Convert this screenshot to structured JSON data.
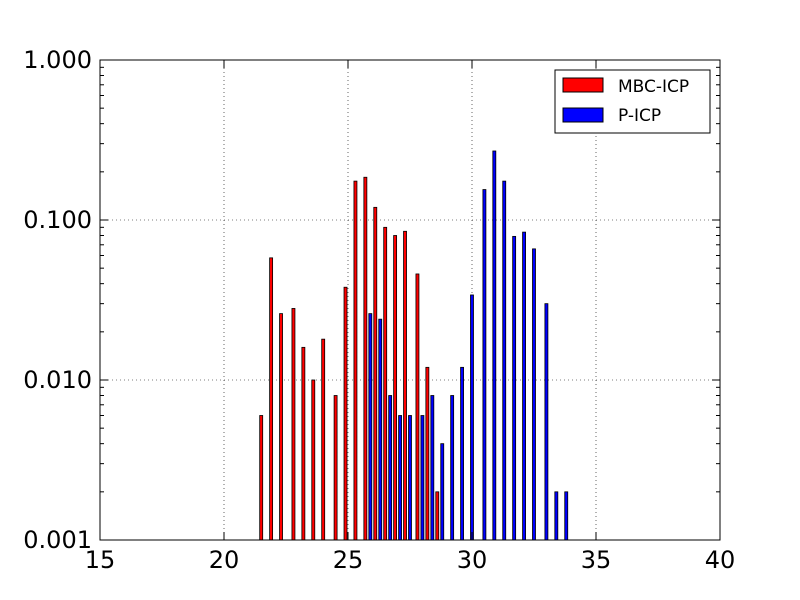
{
  "chart_data": {
    "type": "bar",
    "title": "",
    "xlabel": "",
    "ylabel": "",
    "x_scale": "linear",
    "y_scale": "log",
    "xlim": [
      15,
      40
    ],
    "ylim": [
      0.001,
      1.0
    ],
    "x_ticks": [
      15,
      20,
      25,
      30,
      35,
      40
    ],
    "x_tick_labels": [
      "15",
      "20",
      "25",
      "30",
      "35",
      "40"
    ],
    "y_ticks": [
      0.001,
      0.01,
      0.1,
      1.0
    ],
    "y_tick_labels": [
      "0.001",
      "0.010",
      "0.100",
      "1.000"
    ],
    "grid": true,
    "legend_position": "top-right",
    "series": [
      {
        "name": "MBC-ICP",
        "color": "#ff0000",
        "x": [
          21.5,
          21.9,
          22.3,
          22.8,
          23.2,
          23.6,
          24.0,
          24.5,
          24.9,
          25.3,
          25.7,
          26.1,
          26.5,
          26.9,
          27.3,
          27.8,
          28.2,
          28.6
        ],
        "values": [
          0.006,
          0.058,
          0.026,
          0.028,
          0.016,
          0.01,
          0.018,
          0.008,
          0.038,
          0.175,
          0.185,
          0.12,
          0.09,
          0.08,
          0.085,
          0.046,
          0.012,
          0.002
        ]
      },
      {
        "name": "P-ICP",
        "color": "#0000ff",
        "x": [
          25.9,
          26.3,
          26.7,
          27.1,
          27.5,
          28.0,
          28.4,
          28.8,
          29.2,
          29.6,
          30.0,
          30.5,
          30.9,
          31.3,
          31.7,
          32.1,
          32.5,
          33.0,
          33.4,
          33.8
        ],
        "values": [
          0.026,
          0.024,
          0.008,
          0.006,
          0.006,
          0.006,
          0.008,
          0.004,
          0.008,
          0.012,
          0.034,
          0.155,
          0.27,
          0.175,
          0.079,
          0.084,
          0.066,
          0.03,
          0.002,
          0.002
        ]
      }
    ]
  }
}
